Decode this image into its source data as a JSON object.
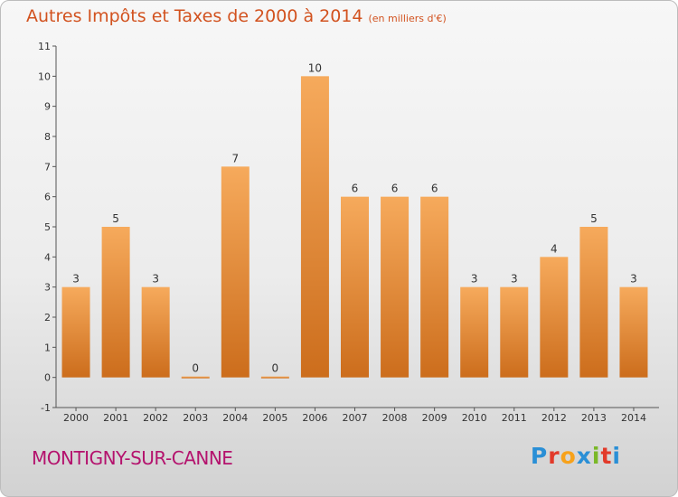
{
  "header": {
    "title": "Autres Impôts et Taxes de 2000 à 2014",
    "unit": "(en milliers d'€)"
  },
  "footer": {
    "place": "MONTIGNY-SUR-CANNE",
    "brand": "Proxiti"
  },
  "colors": {
    "title": "#d2521f",
    "place": "#b4126d",
    "bar_light": "#f6aa5c",
    "bar_dark": "#cc6d1c"
  },
  "chart_data": {
    "type": "bar",
    "categories": [
      "2000",
      "2001",
      "2002",
      "2003",
      "2004",
      "2005",
      "2006",
      "2007",
      "2008",
      "2009",
      "2010",
      "2011",
      "2012",
      "2013",
      "2014"
    ],
    "values": [
      3,
      5,
      3,
      0,
      7,
      0,
      10,
      6,
      6,
      6,
      3,
      3,
      4,
      5,
      3
    ],
    "data_labels": [
      "3",
      "5",
      "3",
      "0",
      "7",
      "0",
      "10",
      "6",
      "6",
      "6",
      "3",
      "3",
      "4",
      "5",
      "3"
    ],
    "y_ticks": [
      "11",
      "10",
      "9",
      "8",
      "7",
      "6",
      "5",
      "4",
      "3",
      "2",
      "1",
      "0",
      "-1"
    ],
    "ylim": [
      -1,
      11
    ],
    "grid": false,
    "legend": "none"
  }
}
